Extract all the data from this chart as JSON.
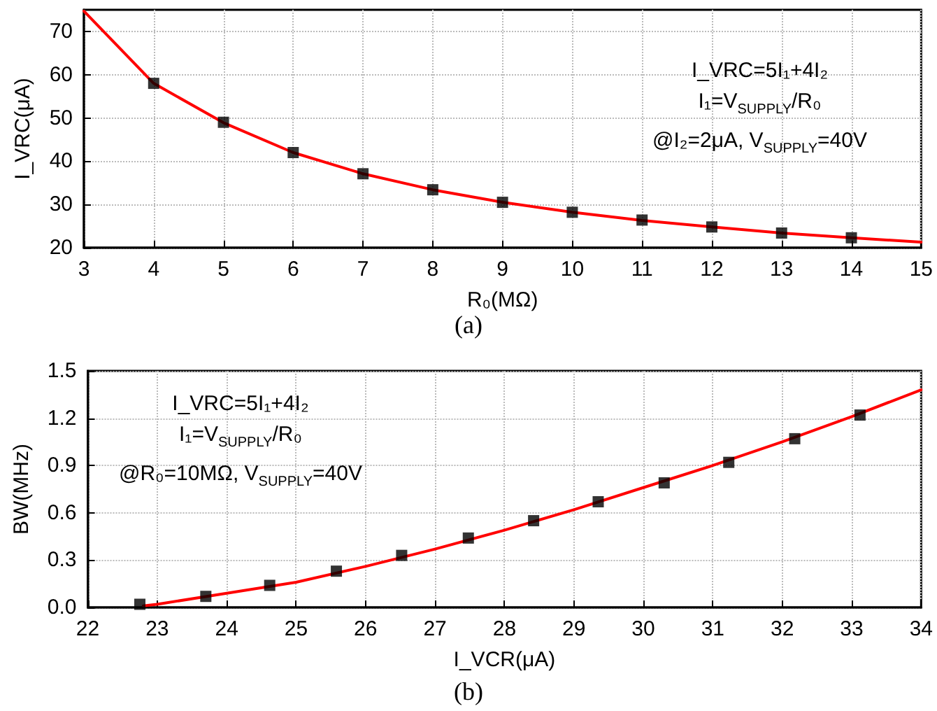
{
  "chart_data": [
    {
      "type": "line",
      "xlabel": "R₀(MΩ)",
      "ylabel": "I_VRC(μA)",
      "xlim": [
        3,
        15
      ],
      "xticks": [
        3,
        4,
        5,
        6,
        7,
        8,
        9,
        10,
        11,
        12,
        13,
        14,
        15
      ],
      "ylim": [
        20,
        75
      ],
      "yticks": [
        20,
        30,
        40,
        50,
        60,
        70
      ],
      "grid": true,
      "annotations": [
        "I_VRC=5I₁+4I₂",
        "I₁=V$_{SUPPLY}$/R₀",
        "@I₂=2μA, V$_{SUPPLY}$=40V",
        "(a)"
      ],
      "series": [
        {
          "color": "#ff0000",
          "marker": "none",
          "line_style": "solid",
          "x": [
            3,
            4,
            5,
            6,
            7,
            8,
            9,
            10,
            11,
            12,
            13,
            14,
            15
          ],
          "values": [
            74.7,
            58,
            48.9,
            42,
            37.1,
            33.4,
            30.5,
            28.2,
            26.3,
            24.8,
            23.4,
            22.3,
            21.3
          ]
        },
        {
          "type": "scatter",
          "color": "#000000",
          "marker": "square",
          "x": [
            4,
            5,
            6,
            7,
            8,
            9,
            10,
            11,
            12,
            13,
            14
          ],
          "values": [
            58,
            49,
            42,
            37.1,
            33.4,
            30.5,
            28.2,
            26.4,
            24.8,
            23.4,
            22.3
          ]
        }
      ]
    },
    {
      "type": "line",
      "xlabel": "I_VCR(μA)",
      "ylabel": "BW(MHz)",
      "xlim": [
        22,
        34
      ],
      "xticks": [
        22,
        23,
        24,
        25,
        26,
        27,
        28,
        29,
        30,
        31,
        32,
        33,
        34
      ],
      "ylim": [
        0,
        1.5
      ],
      "yticks": [
        {
          "value": 0,
          "label": "0.0"
        },
        0.3,
        0.6,
        0.9,
        1.2,
        1.5
      ],
      "grid": true,
      "annotations": [
        "I_VRC=5I₁+4I₂",
        "I₁=V$_{SUPPLY}$/R₀",
        "@R₀=10MΩ, V$_{SUPPLY}$=40V",
        "(b)"
      ],
      "series": [
        {
          "color": "#ff0000",
          "marker": "none",
          "line_style": "solid",
          "x": [
            22.8,
            23,
            24,
            25,
            26,
            27,
            28,
            29,
            30,
            31,
            32,
            33,
            34
          ],
          "values": [
            0.01,
            0.02,
            0.09,
            0.16,
            0.26,
            0.37,
            0.49,
            0.62,
            0.76,
            0.9,
            1.05,
            1.21,
            1.38
          ]
        },
        {
          "type": "scatter",
          "color": "#000000",
          "marker": "square",
          "x": [
            22.75,
            23.7,
            24.62,
            25.58,
            26.52,
            27.48,
            28.42,
            29.35,
            30.3,
            31.23,
            32.18,
            33.12
          ],
          "values": [
            0.02,
            0.07,
            0.14,
            0.23,
            0.33,
            0.44,
            0.55,
            0.67,
            0.79,
            0.92,
            1.07,
            1.22
          ]
        }
      ]
    }
  ]
}
